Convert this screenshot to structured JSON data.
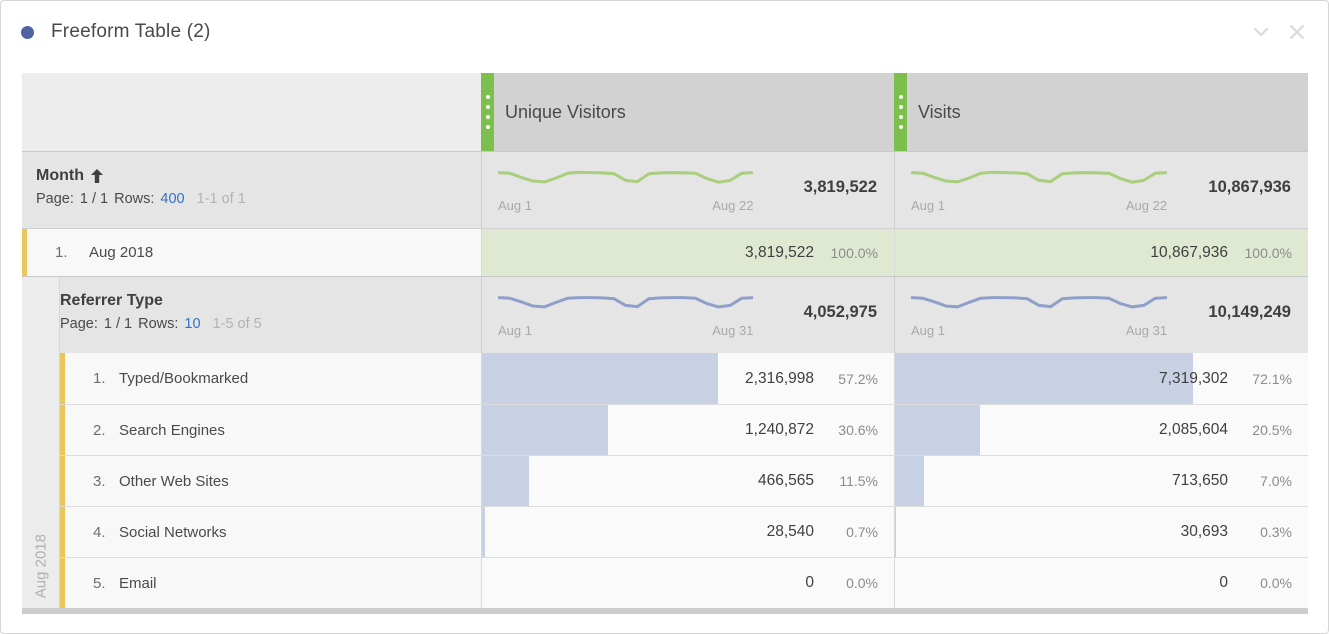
{
  "colors": {
    "accent_dot": "#5063a3",
    "handle_green": "#7dbf4c",
    "spark_green": "#a8ce7e",
    "spark_purple": "#8e9fc9",
    "green_cell_bg": "#dfe9d1",
    "bar_fill": "#c8d0e3",
    "yellow_strip": "#eac65e",
    "link_blue": "#3470c4"
  },
  "panel": {
    "title": "Freeform Table (2)"
  },
  "table": {
    "metric_columns": [
      {
        "label": "Unique Visitors"
      },
      {
        "label": "Visits"
      }
    ],
    "month": {
      "title": "Month",
      "sort_direction": "ascending",
      "pagination": {
        "page_label": "Page:",
        "page_value": "1 / 1",
        "rows_label": "Rows:",
        "rows_link": "400",
        "range": "1-1 of 1"
      },
      "spark_start": "Aug 1",
      "spark_end": "Aug 22",
      "sparkline": [
        0.78,
        0.76,
        0.62,
        0.5,
        0.47,
        0.6,
        0.76,
        0.79,
        0.78,
        0.77,
        0.74,
        0.52,
        0.48,
        0.74,
        0.77,
        0.78,
        0.77,
        0.76,
        0.58,
        0.46,
        0.52,
        0.76,
        0.78
      ],
      "totals": [
        {
          "value": "3,819,522"
        },
        {
          "value": "10,867,936"
        }
      ]
    },
    "rows": [
      {
        "index": "1.",
        "label": "Aug 2018",
        "cells": [
          {
            "value": "3,819,522",
            "pct": "100.0%"
          },
          {
            "value": "10,867,936",
            "pct": "100.0%"
          }
        ]
      }
    ],
    "breakdown": {
      "gutter_label": "Aug 2018",
      "title": "Referrer Type",
      "pagination": {
        "page_label": "Page:",
        "page_value": "1 / 1",
        "rows_label": "Rows:",
        "rows_link": "10",
        "range": "1-5 of 5"
      },
      "spark_start": "Aug 1",
      "spark_end": "Aug 31",
      "sparkline": [
        0.78,
        0.76,
        0.64,
        0.5,
        0.47,
        0.62,
        0.76,
        0.78,
        0.78,
        0.77,
        0.74,
        0.52,
        0.48,
        0.74,
        0.77,
        0.78,
        0.78,
        0.76,
        0.58,
        0.47,
        0.52,
        0.76,
        0.78
      ],
      "totals": [
        {
          "value": "4,052,975"
        },
        {
          "value": "10,149,249"
        }
      ],
      "rows": [
        {
          "index": "1.",
          "label": "Typed/Bookmarked",
          "cells": [
            {
              "value": "2,316,998",
              "pct": "57.2%",
              "bar_pct": 57.2
            },
            {
              "value": "7,319,302",
              "pct": "72.1%",
              "bar_pct": 72.1
            }
          ]
        },
        {
          "index": "2.",
          "label": "Search Engines",
          "cells": [
            {
              "value": "1,240,872",
              "pct": "30.6%",
              "bar_pct": 30.6
            },
            {
              "value": "2,085,604",
              "pct": "20.5%",
              "bar_pct": 20.5
            }
          ]
        },
        {
          "index": "3.",
          "label": "Other Web Sites",
          "cells": [
            {
              "value": "466,565",
              "pct": "11.5%",
              "bar_pct": 11.5
            },
            {
              "value": "713,650",
              "pct": "7.0%",
              "bar_pct": 7.0
            }
          ]
        },
        {
          "index": "4.",
          "label": "Social Networks",
          "cells": [
            {
              "value": "28,540",
              "pct": "0.7%",
              "bar_pct": 0.7
            },
            {
              "value": "30,693",
              "pct": "0.3%",
              "bar_pct": 0.3
            }
          ]
        },
        {
          "index": "5.",
          "label": "Email",
          "cells": [
            {
              "value": "0",
              "pct": "0.0%",
              "bar_pct": 0
            },
            {
              "value": "0",
              "pct": "0.0%",
              "bar_pct": 0
            }
          ]
        }
      ]
    }
  }
}
